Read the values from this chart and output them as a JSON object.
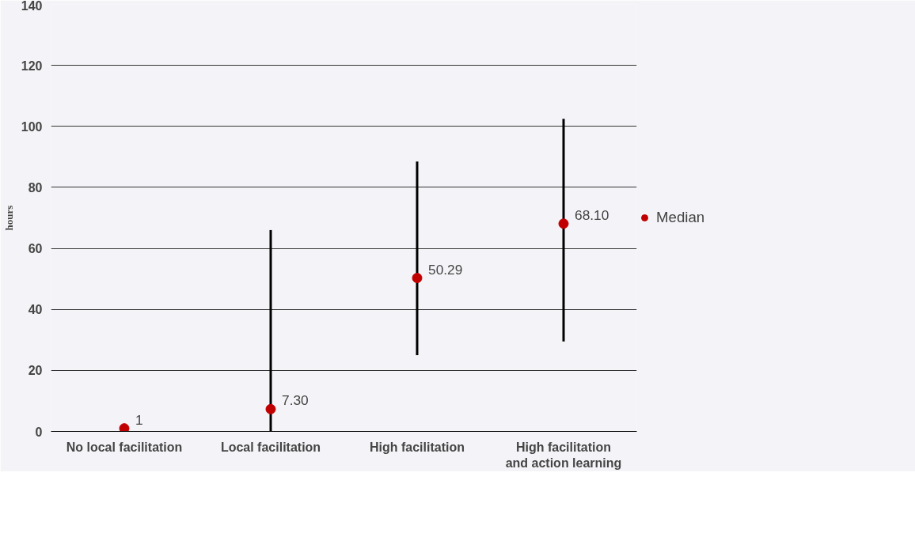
{
  "chart_data": {
    "type": "scatter",
    "ylabel": "hours",
    "categories": [
      "No local facilitation",
      "Local facilitation",
      "High facilitation",
      "High facilitation and action learning"
    ],
    "series": [
      {
        "name": "Median",
        "color": "#c00000",
        "values": [
          1,
          7.3,
          50.29,
          68.1
        ],
        "value_labels": [
          "1",
          "7.30",
          "50.29",
          "68.10"
        ],
        "errors": [
          null,
          [
            0,
            66
          ],
          [
            25,
            88.5
          ],
          [
            29.5,
            102.5
          ]
        ]
      }
    ],
    "ylim": [
      0,
      140
    ],
    "yticks": [
      0,
      20,
      40,
      60,
      80,
      100,
      120,
      140
    ],
    "grid": "y",
    "legend": "right",
    "marker": "circle"
  }
}
